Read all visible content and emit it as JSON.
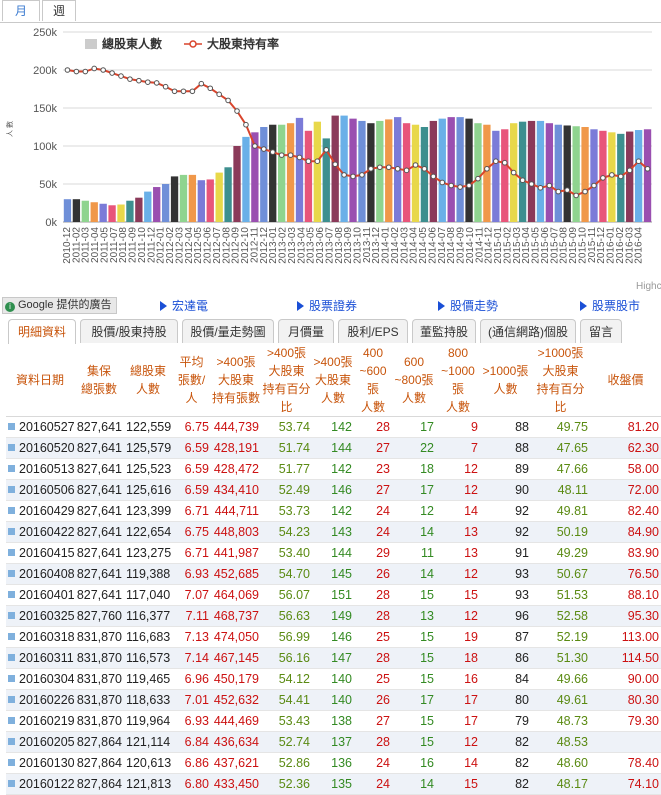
{
  "top_tabs": [
    {
      "label": "月",
      "active": true
    },
    {
      "label": "週",
      "active": false
    }
  ],
  "chart_data": {
    "type": "bar+line",
    "categories": [
      "2010-12",
      "2011-01",
      "2011-02",
      "2011-03",
      "2011-04",
      "2011-05",
      "2011-06",
      "2011-07",
      "2011-08",
      "2011-09",
      "2011-10",
      "2011-11",
      "2011-12",
      "2012-01",
      "2012-02",
      "2012-03",
      "2012-04",
      "2012-05",
      "2012-06",
      "2012-07",
      "2012-08",
      "2012-09",
      "2012-10",
      "2012-11",
      "2012-12",
      "2013-01",
      "2013-02",
      "2013-03",
      "2013-04",
      "2013-05",
      "2013-06",
      "2013-07",
      "2013-08",
      "2013-09",
      "2013-10",
      "2013-11",
      "2013-12",
      "2014-01",
      "2014-02",
      "2014-03",
      "2014-04",
      "2014-05",
      "2014-06",
      "2014-07",
      "2014-08",
      "2014-09",
      "2014-10",
      "2014-11",
      "2014-12",
      "2015-01",
      "2015-02",
      "2015-03",
      "2015-04",
      "2015-05",
      "2015-06",
      "2015-07",
      "2015-08",
      "2015-09",
      "2015-10",
      "2015-11",
      "2015-12",
      "2016-01",
      "2016-02",
      "2016-03",
      "2016-04",
      "2016-05"
    ],
    "x_tick_labels": [
      "2010-12",
      "2011-02",
      "2011-03",
      "2011-04",
      "2011-05",
      "2011-07",
      "2011-08",
      "2011-09",
      "2011-10",
      "2011-12",
      "2012-01",
      "2012-02",
      "2012-03",
      "2012-04",
      "2012-05",
      "2012-06",
      "2012-07",
      "2012-08",
      "2012-09",
      "2012-10",
      "2012-11",
      "2012-12",
      "2013-01",
      "2013-02",
      "2013-03",
      "2013-04",
      "2013-05",
      "2013-06",
      "2013-07",
      "2013-08",
      "2013-09",
      "2013-10",
      "2013-11",
      "2013-12",
      "2014-01",
      "2014-02",
      "2014-03",
      "2014-04",
      "2014-05",
      "2014-06",
      "2014-07",
      "2014-08",
      "2014-09",
      "2014-10",
      "2014-11",
      "2014-12",
      "2015-01",
      "2015-02",
      "2015-03",
      "2015-04",
      "2015-05",
      "2015-06",
      "2015-07",
      "2015-08",
      "2015-09",
      "2015-10",
      "2015-11",
      "2015-12",
      "2016-01",
      "2016-02",
      "2016-03",
      "2016-04"
    ],
    "y_ticks": [
      "0k",
      "50k",
      "100k",
      "150k",
      "200k",
      "250k"
    ],
    "ylim": [
      0,
      250000
    ],
    "ylabel": "人 數",
    "grid": true,
    "legend_position": "top-left",
    "credit": "Highc",
    "series": [
      {
        "name": "總股東人數",
        "kind": "bar",
        "values": [
          30000,
          30000,
          28000,
          26000,
          24000,
          22000,
          23000,
          28000,
          32000,
          40000,
          46000,
          50000,
          60000,
          62000,
          62000,
          55000,
          56000,
          65000,
          72000,
          100000,
          112000,
          118000,
          125000,
          128000,
          128000,
          130000,
          137000,
          120000,
          132000,
          110000,
          140000,
          140000,
          136000,
          133000,
          130000,
          133000,
          135000,
          138000,
          130000,
          128000,
          125000,
          133000,
          136000,
          138000,
          138000,
          136000,
          130000,
          128000,
          120000,
          122000,
          130000,
          132000,
          133000,
          133000,
          130000,
          128000,
          127000,
          126000,
          125000,
          122000,
          120000,
          118000,
          116000,
          119000,
          121000,
          122000
        ]
      },
      {
        "name": "大股東持有率",
        "kind": "line",
        "values": [
          200000,
          198000,
          198000,
          202000,
          200000,
          196000,
          192000,
          188000,
          186000,
          184000,
          183000,
          178000,
          172000,
          172000,
          172000,
          182000,
          176000,
          168000,
          160000,
          146000,
          128000,
          100000,
          96000,
          92000,
          88000,
          88000,
          85000,
          80000,
          80000,
          95000,
          76000,
          62000,
          60000,
          62000,
          70000,
          72000,
          72000,
          70000,
          68000,
          75000,
          70000,
          60000,
          52000,
          48000,
          46000,
          48000,
          57000,
          70000,
          80000,
          78000,
          65000,
          55000,
          50000,
          45000,
          48000,
          40000,
          42000,
          35000,
          40000,
          48000,
          58000,
          62000,
          60000,
          68000,
          80000,
          70000
        ]
      }
    ],
    "colors": {
      "line": "#d9442c",
      "legend_bar": "#cccccc",
      "bar_palette": [
        "#6f8fd8",
        "#333333",
        "#8fd48f",
        "#f0984a",
        "#7b7bd8",
        "#e8557a",
        "#e8d84a",
        "#3d8f8f",
        "#8b3a5a",
        "#6ab0e8",
        "#9a4fb0"
      ]
    }
  },
  "ad_bar": {
    "badge": "Google 提供的廣告",
    "links": [
      "宏達電",
      "股票證券",
      "股價走勢",
      "股票股市"
    ]
  },
  "tabs": [
    {
      "label": "明細資料",
      "active": true
    },
    {
      "label": "股價/股東持股",
      "active": false
    },
    {
      "label": "股價/量走勢圖",
      "active": false
    },
    {
      "label": "月價量",
      "active": false
    },
    {
      "label": "股利/EPS",
      "active": false
    },
    {
      "label": "董監持股",
      "active": false
    },
    {
      "label": "(通信網路)個股",
      "active": false
    },
    {
      "label": "留言",
      "active": false
    }
  ],
  "table": {
    "headers": [
      [
        "資料日期"
      ],
      [
        "集保",
        "總張數"
      ],
      [
        "總股東",
        "人數"
      ],
      [
        "平均",
        "張數/人"
      ],
      [
        ">400張",
        "大股東",
        "持有張數"
      ],
      [
        ">400張",
        "大股東",
        "持有百分比"
      ],
      [
        ">400張",
        "大股東",
        "人數"
      ],
      [
        "400",
        "~600張",
        "人數"
      ],
      [
        "600",
        "~800張",
        "人數"
      ],
      [
        "800",
        "~1000張",
        "人數"
      ],
      [
        ">1000張",
        "人數"
      ],
      [
        ">1000張",
        "大股東",
        "持有百分比"
      ],
      [
        "收盤價"
      ]
    ],
    "rows": [
      [
        "20160527",
        "827,641",
        "122,559",
        "6.75",
        "444,739",
        "53.74",
        "142",
        "28",
        "17",
        "9",
        "88",
        "49.75",
        "81.20"
      ],
      [
        "20160520",
        "827,641",
        "125,579",
        "6.59",
        "428,191",
        "51.74",
        "144",
        "27",
        "22",
        "7",
        "88",
        "47.65",
        "62.30"
      ],
      [
        "20160513",
        "827,641",
        "125,523",
        "6.59",
        "428,472",
        "51.77",
        "142",
        "23",
        "18",
        "12",
        "89",
        "47.66",
        "58.00"
      ],
      [
        "20160506",
        "827,641",
        "125,616",
        "6.59",
        "434,410",
        "52.49",
        "146",
        "27",
        "17",
        "12",
        "90",
        "48.11",
        "72.00"
      ],
      [
        "20160429",
        "827,641",
        "123,399",
        "6.71",
        "444,711",
        "53.73",
        "142",
        "24",
        "12",
        "14",
        "92",
        "49.81",
        "82.40"
      ],
      [
        "20160422",
        "827,641",
        "122,654",
        "6.75",
        "448,803",
        "54.23",
        "143",
        "24",
        "14",
        "13",
        "92",
        "50.19",
        "84.90"
      ],
      [
        "20160415",
        "827,641",
        "123,275",
        "6.71",
        "441,987",
        "53.40",
        "144",
        "29",
        "11",
        "13",
        "91",
        "49.29",
        "83.90"
      ],
      [
        "20160408",
        "827,641",
        "119,388",
        "6.93",
        "452,685",
        "54.70",
        "145",
        "26",
        "14",
        "12",
        "93",
        "50.67",
        "76.50"
      ],
      [
        "20160401",
        "827,641",
        "117,040",
        "7.07",
        "464,069",
        "56.07",
        "151",
        "28",
        "15",
        "15",
        "93",
        "51.53",
        "88.10"
      ],
      [
        "20160325",
        "827,760",
        "116,377",
        "7.11",
        "468,737",
        "56.63",
        "149",
        "28",
        "13",
        "12",
        "96",
        "52.58",
        "95.30"
      ],
      [
        "20160318",
        "831,870",
        "116,683",
        "7.13",
        "474,050",
        "56.99",
        "146",
        "25",
        "15",
        "19",
        "87",
        "52.19",
        "113.00"
      ],
      [
        "20160311",
        "831,870",
        "116,573",
        "7.14",
        "467,145",
        "56.16",
        "147",
        "28",
        "15",
        "18",
        "86",
        "51.30",
        "114.50"
      ],
      [
        "20160304",
        "831,870",
        "119,465",
        "6.96",
        "450,179",
        "54.12",
        "140",
        "25",
        "15",
        "16",
        "84",
        "49.66",
        "90.00"
      ],
      [
        "20160226",
        "831,870",
        "118,633",
        "7.01",
        "452,632",
        "54.41",
        "140",
        "26",
        "17",
        "17",
        "80",
        "49.61",
        "80.30"
      ],
      [
        "20160219",
        "831,870",
        "119,964",
        "6.93",
        "444,469",
        "53.43",
        "138",
        "27",
        "15",
        "17",
        "79",
        "48.73",
        "79.30"
      ],
      [
        "20160205",
        "827,864",
        "121,114",
        "6.84",
        "436,634",
        "52.74",
        "137",
        "28",
        "15",
        "12",
        "82",
        "48.53",
        ""
      ],
      [
        "20160130",
        "827,864",
        "120,613",
        "6.86",
        "437,621",
        "52.86",
        "136",
        "24",
        "16",
        "14",
        "82",
        "48.60",
        "78.40"
      ],
      [
        "20160122",
        "827,864",
        "121,813",
        "6.80",
        "433,450",
        "52.36",
        "135",
        "24",
        "14",
        "15",
        "82",
        "48.17",
        "74.10"
      ]
    ]
  }
}
